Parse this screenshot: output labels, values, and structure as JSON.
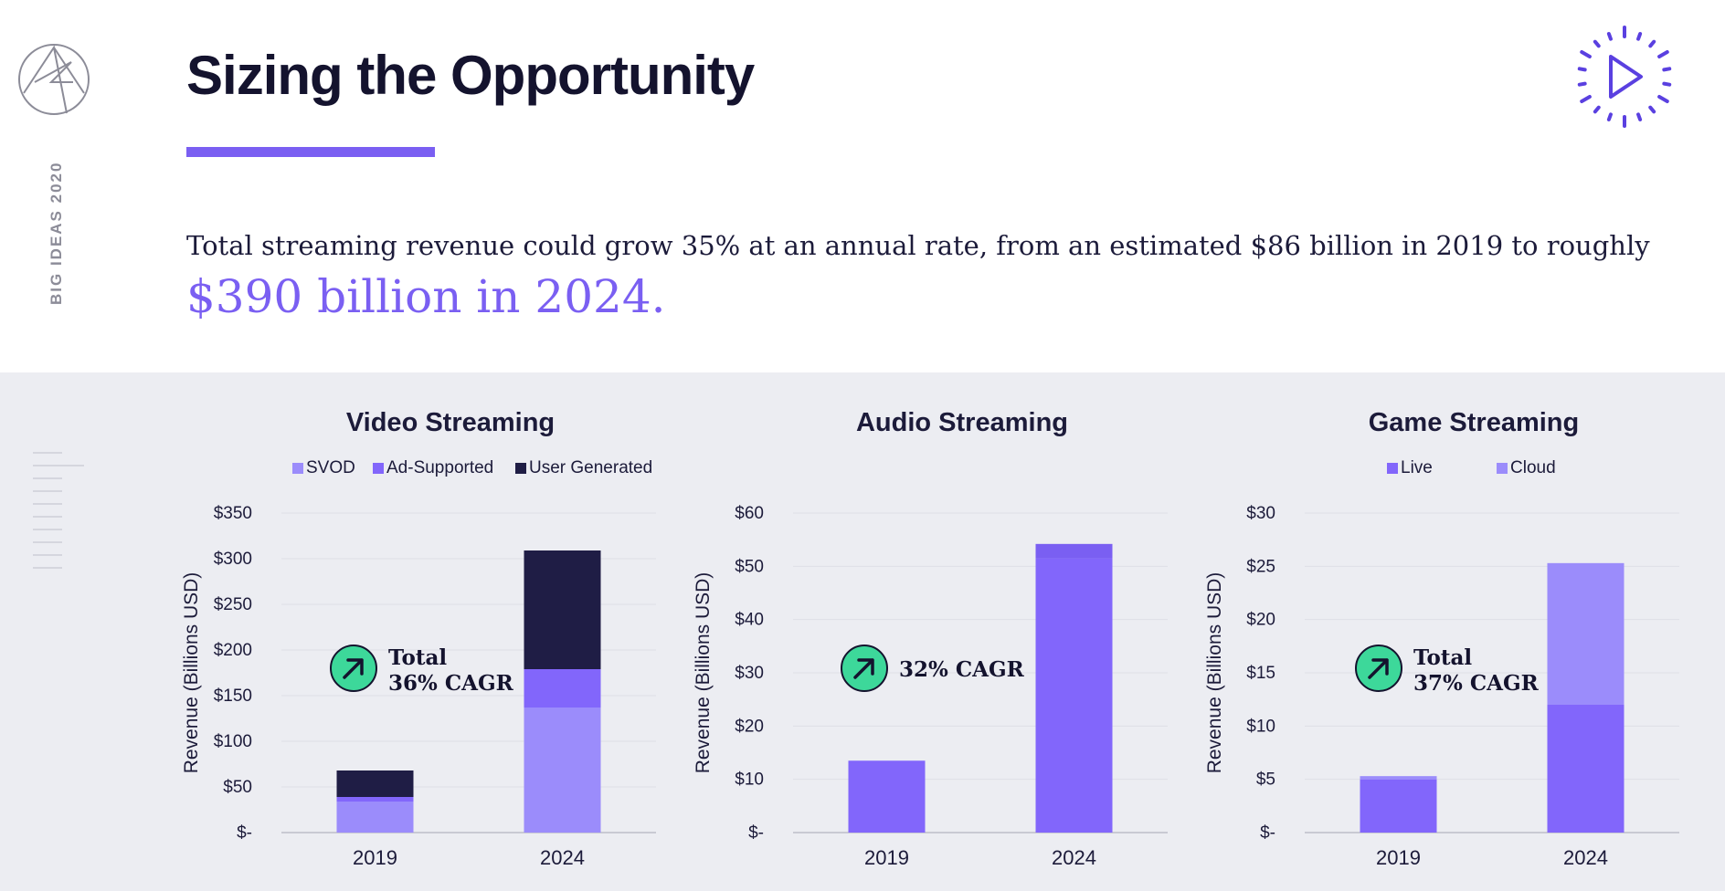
{
  "header": {
    "side_label": "BIG IDEAS 2020",
    "title": "Sizing the Opportunity",
    "intro_text": "Total streaming revenue could grow 35% at an annual rate, from an estimated $86 billion in 2019 to roughly",
    "highlight_text": "$390 billion in 2024."
  },
  "colors": {
    "accent": "#7a5ff2",
    "svod": "#9b8cfb",
    "ad_supported": "#8266fb",
    "user_generated": "#1f1d45",
    "badge_green": "#3dd89a",
    "panel_bg": "#ecedf2"
  },
  "icons": {
    "logo": "ark-logo-icon",
    "play": "play-circle-icon",
    "cagr": "arrow-up-right-icon"
  },
  "chart_data": [
    {
      "type": "bar",
      "stacked": true,
      "title": "Video Streaming",
      "ylabel": "Revenue (Billions USD)",
      "categories": [
        "2019",
        "2024"
      ],
      "ylim": [
        0,
        350
      ],
      "yticks": [
        0,
        50,
        100,
        150,
        200,
        250,
        300,
        350
      ],
      "ytick_labels": [
        "$-",
        "$50",
        "$100",
        "$150",
        "$200",
        "$250",
        "$300",
        "$350"
      ],
      "legend": "top",
      "series": [
        {
          "name": "SVOD",
          "color": "#9b8cfb",
          "values": [
            34,
            137
          ]
        },
        {
          "name": "Ad-Supported",
          "color": "#8266fb",
          "values": [
            5,
            42
          ]
        },
        {
          "name": "User Generated",
          "color": "#1f1d45",
          "values": [
            29,
            130
          ]
        }
      ],
      "annotation": {
        "lines": [
          "Total",
          "36% CAGR"
        ]
      }
    },
    {
      "type": "bar",
      "stacked": true,
      "title": "Audio Streaming",
      "ylabel": "Revenue (Billions USD)",
      "categories": [
        "2019",
        "2024"
      ],
      "ylim": [
        0,
        60
      ],
      "yticks": [
        0,
        10,
        20,
        30,
        40,
        50,
        60
      ],
      "ytick_labels": [
        "$-",
        "$10",
        "$20",
        "$30",
        "$40",
        "$50",
        "$60"
      ],
      "legend": "none",
      "series": [
        {
          "color": "#8266fb",
          "values": [
            13.5,
            51.5
          ]
        },
        {
          "color": "#7a5ff2",
          "values": [
            0,
            2.7
          ]
        }
      ],
      "annotation": {
        "lines": [
          "32% CAGR"
        ]
      }
    },
    {
      "type": "bar",
      "stacked": true,
      "title": "Game Streaming",
      "ylabel": "Revenue (Billions USD)",
      "categories": [
        "2019",
        "2024"
      ],
      "ylim": [
        0,
        30
      ],
      "yticks": [
        0,
        5,
        10,
        15,
        20,
        25,
        30
      ],
      "ytick_labels": [
        "$-",
        "$5",
        "$10",
        "$15",
        "$20",
        "$25",
        "$30"
      ],
      "legend": "top",
      "series": [
        {
          "name": "Live",
          "color": "#8266fb",
          "values": [
            5.0,
            12.0
          ]
        },
        {
          "name": "Cloud",
          "color": "#9b8cfb",
          "values": [
            0.3,
            13.3
          ]
        }
      ],
      "annotation": {
        "lines": [
          "Total",
          "37% CAGR"
        ]
      }
    }
  ]
}
